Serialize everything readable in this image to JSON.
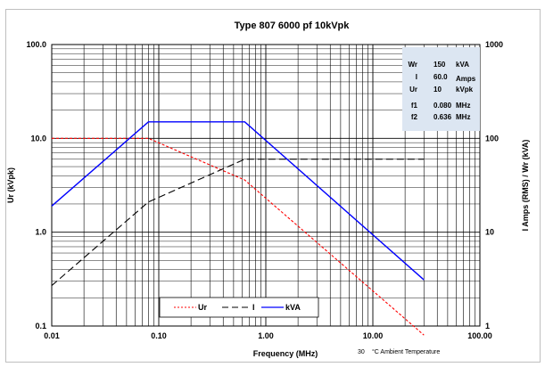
{
  "chart_data": {
    "type": "line",
    "title": "Type 807  6000 pf   10kVpk",
    "xlabel": "Frequency (MHz)",
    "ylabel_left": "Ur (kVpk)",
    "ylabel_right": "I Amps (RMS) / Wr (kVA)",
    "x_scale": "log",
    "y_scale": "log",
    "xlim": [
      0.01,
      100
    ],
    "ylim_left": [
      0.1,
      100
    ],
    "ylim_right": [
      1,
      1000
    ],
    "grid": true,
    "x_ticks": [
      "0.01",
      "0.10",
      "1.00",
      "10.00",
      "100.00"
    ],
    "y_left_ticks": [
      "0.1",
      "1.0",
      "10.0",
      "100.0"
    ],
    "y_right_ticks": [
      "1",
      "10",
      "100",
      "1000"
    ],
    "series": [
      {
        "name": "Ur",
        "axis": "left",
        "color": "#ff0000",
        "dash": "short-dash",
        "x": [
          0.01,
          0.08,
          0.636,
          30
        ],
        "y": [
          10,
          10,
          3.6,
          0.08
        ]
      },
      {
        "name": "I",
        "axis": "right",
        "color": "#000000",
        "dash": "long-dash",
        "x": [
          0.01,
          0.08,
          0.636,
          30
        ],
        "y": [
          2.7,
          21,
          60,
          60
        ]
      },
      {
        "name": "kVA",
        "axis": "right",
        "color": "#0000ff",
        "dash": "solid",
        "x": [
          0.01,
          0.08,
          0.636,
          30
        ],
        "y": [
          19,
          150,
          150,
          3.1
        ]
      }
    ],
    "legend_position": "bottom-center",
    "info_box": {
      "position": "top-right",
      "rows": [
        {
          "label": "Wr",
          "value": "150",
          "unit": "kVA"
        },
        {
          "label": "I",
          "value": "60.0",
          "unit": "Amps"
        },
        {
          "label": "Ur",
          "value": "10",
          "unit": "kVpk"
        },
        {
          "label": "f1",
          "value": "0.080",
          "unit": "MHz"
        },
        {
          "label": "f2",
          "value": "0.636",
          "unit": "MHz"
        }
      ]
    },
    "ambient_temperature": "30",
    "ambient_label": "°C Ambient Temperature"
  },
  "colors": {
    "info_box_bg": "#dce6f2",
    "grid": "#000000"
  }
}
